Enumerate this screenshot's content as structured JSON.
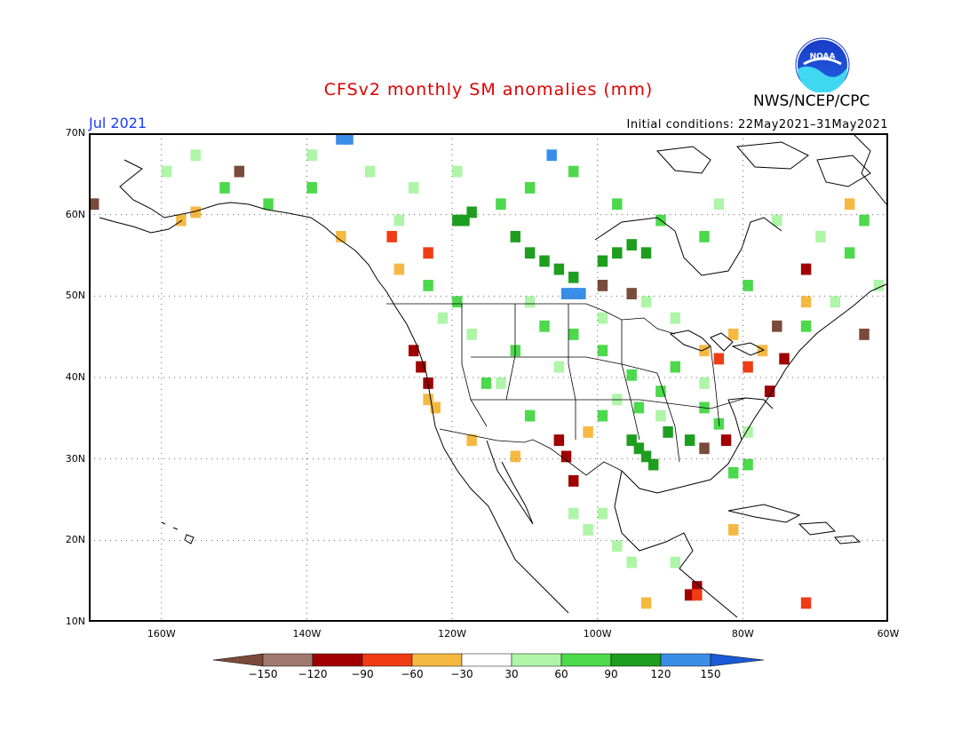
{
  "header": {
    "title": "CFSv2 monthly SM anomalies (mm)",
    "center": "NWS/NCEP/CPC",
    "month": "Jul 2021",
    "initial_conditions": "Initial conditions: 22May2021–31May2021"
  },
  "logo": {
    "text": "NOAA"
  },
  "map": {
    "lon_range": [
      -170,
      -60
    ],
    "lat_range": [
      10,
      70
    ],
    "lat_labels": [
      {
        "lat": 70,
        "label": "70N"
      },
      {
        "lat": 60,
        "label": "60N"
      },
      {
        "lat": 50,
        "label": "50N"
      },
      {
        "lat": 40,
        "label": "40N"
      },
      {
        "lat": 30,
        "label": "30N"
      },
      {
        "lat": 20,
        "label": "20N"
      },
      {
        "lat": 10,
        "label": "10N"
      }
    ],
    "lon_labels": [
      {
        "lon": -160,
        "label": "160W"
      },
      {
        "lon": -140,
        "label": "140W"
      },
      {
        "lon": -120,
        "label": "120W"
      },
      {
        "lon": -100,
        "label": "100W"
      },
      {
        "lon": -80,
        "label": "80W"
      },
      {
        "lon": -60,
        "label": "60W"
      }
    ],
    "grid": true,
    "cell_size_deg": 1,
    "anomaly_cells": [
      [
        -150,
        66,
        "#78c1"
      ],
      [
        -120,
        60,
        "#2b"
      ],
      [
        -119,
        60,
        "#2b"
      ],
      [
        -118,
        61,
        "#2b"
      ],
      [
        -112,
        58,
        "#1e"
      ],
      [
        -110,
        56,
        "#1e"
      ],
      [
        -108,
        55,
        "#1e"
      ],
      [
        -106,
        54,
        "#1e"
      ],
      [
        -104,
        53,
        "#1e"
      ],
      [
        -100,
        55,
        "#1e"
      ],
      [
        -98,
        56,
        "#1e"
      ],
      [
        -96,
        57,
        "#1e"
      ],
      [
        -94,
        56,
        "#1e"
      ],
      [
        -105,
        51,
        "#3a"
      ],
      [
        -104,
        51,
        "#3a"
      ],
      [
        -103,
        51,
        "#3a"
      ],
      [
        -107,
        68,
        "#3a"
      ],
      [
        -135,
        70,
        "#3a"
      ],
      [
        -136,
        70,
        "#3a"
      ],
      [
        -126,
        44,
        "#8b"
      ],
      [
        -125,
        42,
        "#8b"
      ],
      [
        -124,
        40,
        "#8b"
      ],
      [
        -106,
        33,
        "#8b"
      ],
      [
        -105,
        31,
        "#8b"
      ],
      [
        -104,
        28,
        "#8b"
      ],
      [
        -88,
        14,
        "#8b"
      ],
      [
        -87,
        15,
        "#8b"
      ],
      [
        -83,
        33,
        "#8b"
      ],
      [
        -77,
        39,
        "#8b"
      ],
      [
        -75,
        43,
        "#8b"
      ],
      [
        -72,
        54,
        "#8b"
      ],
      [
        -96,
        33,
        "#1e"
      ],
      [
        -95,
        32,
        "#1e"
      ],
      [
        -94,
        31,
        "#1e"
      ],
      [
        -93,
        30,
        "#1e"
      ],
      [
        -91,
        34,
        "#1e"
      ],
      [
        -88,
        33,
        "#1e"
      ],
      [
        -90,
        42,
        "#4c"
      ],
      [
        -92,
        39,
        "#4c"
      ],
      [
        -96,
        41,
        "#4c"
      ],
      [
        -100,
        44,
        "#4c"
      ],
      [
        -104,
        46,
        "#4c"
      ],
      [
        -108,
        47,
        "#4c"
      ],
      [
        -112,
        44,
        "#4c"
      ],
      [
        -116,
        40,
        "#4c"
      ],
      [
        -110,
        36,
        "#4c"
      ],
      [
        -100,
        36,
        "#4c"
      ],
      [
        -95,
        37,
        "#4c"
      ],
      [
        -86,
        37,
        "#4c"
      ],
      [
        -84,
        35,
        "#4c"
      ],
      [
        -80,
        30,
        "#4c"
      ],
      [
        -82,
        29,
        "#4c"
      ],
      [
        -120,
        50,
        "#4c"
      ],
      [
        -124,
        52,
        "#4c"
      ],
      [
        -114,
        62,
        "#4c"
      ],
      [
        -110,
        64,
        "#4c"
      ],
      [
        -104,
        66,
        "#4c"
      ],
      [
        -98,
        62,
        "#4c"
      ],
      [
        -92,
        60,
        "#4c"
      ],
      [
        -86,
        58,
        "#4c"
      ],
      [
        -80,
        52,
        "#4c"
      ],
      [
        -72,
        47,
        "#4c"
      ],
      [
        -66,
        56,
        "#4c"
      ],
      [
        -64,
        60,
        "#4c"
      ],
      [
        -140,
        64,
        "#4c"
      ],
      [
        -146,
        62,
        "#4c"
      ],
      [
        -152,
        64,
        "#4c"
      ],
      [
        -90,
        48,
        "#b2"
      ],
      [
        -94,
        50,
        "#b2"
      ],
      [
        -100,
        48,
        "#b2"
      ],
      [
        -110,
        50,
        "#b2"
      ],
      [
        -118,
        46,
        "#b2"
      ],
      [
        -122,
        48,
        "#b2"
      ],
      [
        -114,
        40,
        "#b2"
      ],
      [
        -106,
        42,
        "#b2"
      ],
      [
        -98,
        38,
        "#b2"
      ],
      [
        -92,
        36,
        "#b2"
      ],
      [
        -86,
        40,
        "#b2"
      ],
      [
        -80,
        34,
        "#b2"
      ],
      [
        -100,
        24,
        "#b2"
      ],
      [
        -98,
        20,
        "#b2"
      ],
      [
        -102,
        22,
        "#b2"
      ],
      [
        -104,
        24,
        "#b2"
      ],
      [
        -96,
        18,
        "#b2"
      ],
      [
        -90,
        18,
        "#b2"
      ],
      [
        -120,
        66,
        "#b2"
      ],
      [
        -126,
        64,
        "#b2"
      ],
      [
        -132,
        66,
        "#b2"
      ],
      [
        -140,
        68,
        "#b2"
      ],
      [
        -156,
        68,
        "#b2"
      ],
      [
        -160,
        66,
        "#b2"
      ],
      [
        -128,
        60,
        "#b2"
      ],
      [
        -84,
        62,
        "#b2"
      ],
      [
        -76,
        60,
        "#b2"
      ],
      [
        -70,
        58,
        "#b2"
      ],
      [
        -62,
        52,
        "#b2"
      ],
      [
        -68,
        50,
        "#b2"
      ],
      [
        -124,
        38,
        "#f5"
      ],
      [
        -123,
        37,
        "#f5"
      ],
      [
        -118,
        33,
        "#f5"
      ],
      [
        -112,
        31,
        "#f5"
      ],
      [
        -86,
        44,
        "#f5"
      ],
      [
        -82,
        46,
        "#f5"
      ],
      [
        -78,
        44,
        "#f5"
      ],
      [
        -72,
        50,
        "#f5"
      ],
      [
        -66,
        62,
        "#f5"
      ],
      [
        -158,
        60,
        "#f5"
      ],
      [
        -156,
        61,
        "#f5"
      ],
      [
        -136,
        58,
        "#f5"
      ],
      [
        -128,
        54,
        "#f5"
      ],
      [
        -102,
        34,
        "#f5"
      ],
      [
        -94,
        13,
        "#f5"
      ],
      [
        -82,
        22,
        "#f5"
      ],
      [
        -129,
        58,
        "#fe"
      ],
      [
        -124,
        56,
        "#fe"
      ],
      [
        -84,
        43,
        "#fe"
      ],
      [
        -80,
        42,
        "#fe"
      ],
      [
        -72,
        13,
        "#fe"
      ],
      [
        -87,
        14,
        "#fe"
      ],
      [
        -100,
        52,
        "#a5"
      ],
      [
        -96,
        51,
        "#a5"
      ],
      [
        -76,
        47,
        "#a5"
      ],
      [
        -170,
        62,
        "#a5"
      ],
      [
        -86,
        32,
        "#a5"
      ],
      [
        -64,
        46,
        "#a5"
      ]
    ]
  },
  "colorbar": {
    "labels": [
      "−150",
      "−120",
      "−90",
      "−60",
      "−30",
      "30",
      "60",
      "90",
      "120",
      "150"
    ],
    "colors": [
      "#7a4b3a",
      "#a07870",
      "#a00000",
      "#f03c14",
      "#f5b942",
      "#ffffff",
      "#aef5a8",
      "#4cd94c",
      "#1e9e1e",
      "#3a8ee8",
      "#1a5ad6"
    ]
  }
}
